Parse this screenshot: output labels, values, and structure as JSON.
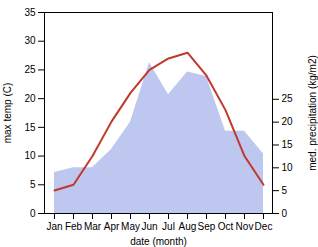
{
  "chart_data": {
    "type": "line",
    "xlabel": "date (month)",
    "ylabel": "max temp (C)",
    "y2label": "med. precipitation (kg/m2)",
    "categories": [
      "Jan",
      "Feb",
      "Mar",
      "Apr",
      "May",
      "Jun",
      "Jul",
      "Aug",
      "Sep",
      "Oct",
      "Nov",
      "Dec"
    ],
    "series": [
      {
        "type": "area",
        "axis": "y2",
        "color": "#bdc7ef",
        "values": [
          9,
          10,
          10,
          14,
          20,
          33,
          26,
          31,
          30,
          18,
          18,
          13
        ]
      },
      {
        "type": "line",
        "color": "#c0392b",
        "values": [
          4,
          5,
          10,
          16,
          21,
          25,
          27,
          28,
          24,
          18,
          10,
          5
        ]
      }
    ],
    "ylim": [
      0,
      35
    ],
    "yticks": [
      0,
      5,
      10,
      15,
      20,
      25,
      30,
      35
    ],
    "y2lim": [
      0,
      44
    ],
    "y2ticks": [
      0,
      5,
      10,
      15,
      20,
      25
    ]
  }
}
